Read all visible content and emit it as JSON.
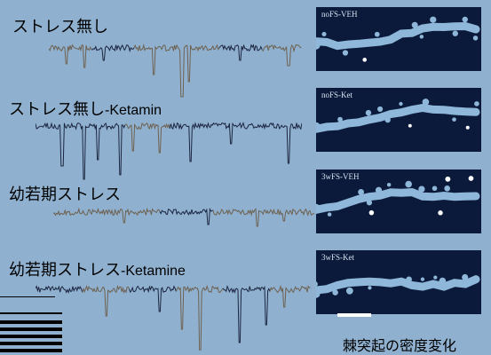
{
  "traces": [
    {
      "label_jp": "ストレス無し",
      "label_en": ""
    },
    {
      "label_jp": "ストレス無し",
      "label_en": "-Ketamin"
    },
    {
      "label_jp": "幼若期ストレス",
      "label_en": ""
    },
    {
      "label_jp": "幼若期ストレス",
      "label_en": "-Ketamine"
    }
  ],
  "panels": [
    {
      "title": "noFS-VEH"
    },
    {
      "title": "noFS-Ket"
    },
    {
      "title": "3wFS-VEH"
    },
    {
      "title": "3wFS-Ket"
    }
  ],
  "caption": "棘突起の密度変化",
  "colors": {
    "background": "#8fb1cf",
    "trace_dark": "#1c2540",
    "trace_brown": "#6e6150",
    "panel_bg": "#0b1a3a",
    "dendrite": "#8fb7d9"
  }
}
